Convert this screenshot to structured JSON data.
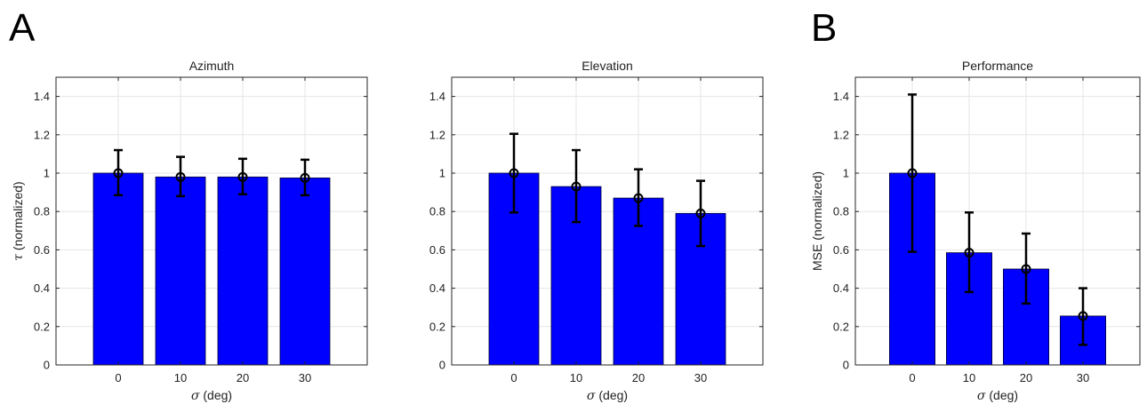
{
  "panel_labels": [
    "A",
    "B"
  ],
  "chart_data": [
    {
      "type": "bar",
      "title": "Azimuth",
      "xlabel": "σ (deg)",
      "ylabel": "τ (normalized)",
      "categories": [
        "0",
        "10",
        "20",
        "30"
      ],
      "values": [
        1.0,
        0.98,
        0.98,
        0.975
      ],
      "error_low": [
        0.885,
        0.88,
        0.89,
        0.885
      ],
      "error_high": [
        1.12,
        1.085,
        1.075,
        1.07
      ],
      "ylim": [
        0,
        1.5
      ],
      "yticks": [
        "0",
        "0.2",
        "0.4",
        "0.6",
        "0.8",
        "1",
        "1.2",
        "1.4"
      ],
      "grid": true,
      "bar_color": "#0000ff"
    },
    {
      "type": "bar",
      "title": "Elevation",
      "xlabel": "σ (deg)",
      "ylabel": "",
      "categories": [
        "0",
        "10",
        "20",
        "30"
      ],
      "values": [
        1.0,
        0.93,
        0.87,
        0.79
      ],
      "error_low": [
        0.795,
        0.745,
        0.725,
        0.62
      ],
      "error_high": [
        1.205,
        1.12,
        1.02,
        0.96
      ],
      "ylim": [
        0,
        1.5
      ],
      "yticks": [
        "0",
        "0.2",
        "0.4",
        "0.6",
        "0.8",
        "1",
        "1.2",
        "1.4"
      ],
      "grid": true,
      "bar_color": "#0000ff"
    },
    {
      "type": "bar",
      "title": "Performance",
      "xlabel": "σ (deg)",
      "ylabel": "MSE (normalized)",
      "categories": [
        "0",
        "10",
        "20",
        "30"
      ],
      "values": [
        1.0,
        0.585,
        0.5,
        0.255
      ],
      "error_low": [
        0.59,
        0.38,
        0.32,
        0.105
      ],
      "error_high": [
        1.41,
        0.795,
        0.685,
        0.4
      ],
      "ylim": [
        0,
        1.5
      ],
      "yticks": [
        "0",
        "0.2",
        "0.4",
        "0.6",
        "0.8",
        "1",
        "1.2",
        "1.4"
      ],
      "grid": true,
      "bar_color": "#0000ff"
    }
  ]
}
